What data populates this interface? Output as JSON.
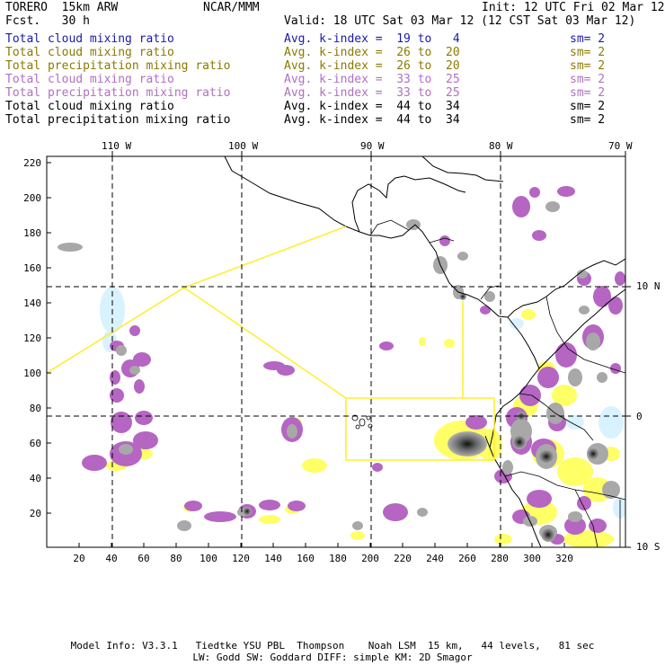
{
  "header": {
    "model": "TORERO  15km ARW",
    "org": "NCAR/MMM",
    "init": "Init: 12 UTC Fri 02 Mar 12",
    "fcst": "Fcst.   30 h",
    "valid": "Valid: 18 UTC Sat 03 Mar 12 (12 CST Sat 03 Mar 12)"
  },
  "legend": [
    {
      "field": "Total cloud mixing ratio",
      "idx": "Avg. k-index =  19 to   4",
      "sm": "sm= 2",
      "color": "#1a1aa8"
    },
    {
      "field": "Total cloud mixing ratio",
      "idx": "Avg. k-index =  26 to  20",
      "sm": "sm= 2",
      "color": "#8a7a00"
    },
    {
      "field": "Total precipitation mixing ratio",
      "idx": "Avg. k-index =  26 to  20",
      "sm": "sm= 2",
      "color": "#8a7a00"
    },
    {
      "field": "Total cloud mixing ratio",
      "idx": "Avg. k-index =  33 to  25",
      "sm": "sm= 2",
      "color": "#b070c0"
    },
    {
      "field": "Total precipitation mixing ratio",
      "idx": "Avg. k-index =  33 to  25",
      "sm": "sm= 2",
      "color": "#b070c0"
    },
    {
      "field": "Total cloud mixing ratio",
      "idx": "Avg. k-index =  44 to  34",
      "sm": "sm= 2",
      "color": "#000000"
    },
    {
      "field": "Total precipitation mixing ratio",
      "idx": "Avg. k-index =  44 to  34",
      "sm": "sm= 2",
      "color": "#000000"
    }
  ],
  "map": {
    "top_ticks": [
      "110 W",
      "100 W",
      "90 W",
      "80 W",
      "70 W"
    ],
    "right_ticks": [
      "10 N",
      "0",
      "10 S"
    ],
    "y_ticks": [
      "220",
      "200",
      "180",
      "160",
      "140",
      "120",
      "100",
      "80",
      "60",
      "40",
      "20"
    ],
    "x_ticks": [
      "20",
      "40",
      "60",
      "80",
      "100",
      "120",
      "140",
      "160",
      "180",
      "200",
      "220",
      "240",
      "260",
      "280",
      "300",
      "320"
    ]
  },
  "footer": {
    "line1": "Model Info: V3.3.1   Tiedtke YSU PBL  Thompson    Noah LSM  15 km,   44 levels,   81 sec",
    "line2": "LW: Godd SW: Goddard DIFF: simple KM: 2D Smagor"
  },
  "colors": {
    "purple": "#b565c2",
    "yellow": "#ffff66",
    "grey": "#a8a8a8",
    "dark": "#555555",
    "cyan": "#d9f2ff",
    "outline": "#ffee33"
  }
}
